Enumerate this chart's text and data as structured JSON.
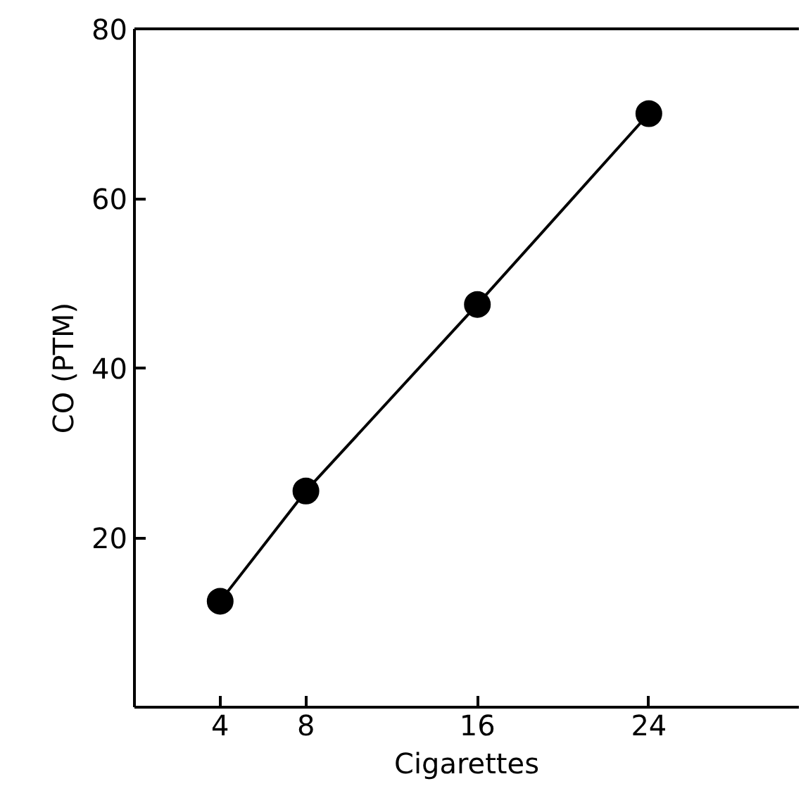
{
  "chart_data": {
    "type": "line",
    "xlabel": "Cigarettes",
    "ylabel": "CO (PTM)",
    "x": [
      4,
      8,
      16,
      24
    ],
    "series": [
      {
        "color": "#000000",
        "values": [
          12.5,
          25.5,
          47.5,
          70
        ]
      }
    ],
    "xlim": [
      0,
      31
    ],
    "ylim": [
      0,
      80
    ],
    "xticks": [
      4,
      8,
      16,
      24
    ],
    "yticks": [
      20,
      40,
      60,
      80
    ],
    "marker": "circle",
    "line_style": "solid"
  }
}
